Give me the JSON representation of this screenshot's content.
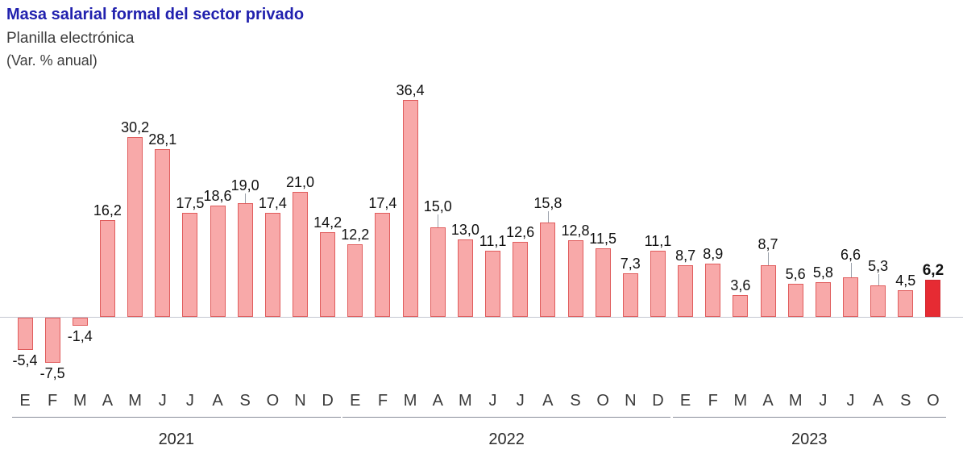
{
  "header": {
    "title": "Masa salarial formal del sector privado",
    "subtitle": "Planilla electrónica",
    "unit": "(Var. % anual)"
  },
  "chart_data": {
    "type": "bar",
    "title": "Masa salarial formal del sector privado",
    "subtitle": "Planilla electrónica",
    "ylabel": "Var. % anual",
    "ylim": [
      -10,
      40
    ],
    "grid": false,
    "legend": "none",
    "colors": {
      "bar_fill": "#f8a9a9",
      "bar_border": "#e05c5c",
      "highlight_fill": "#e62b33",
      "highlight_border": "#d42830",
      "title_blue": "#2121AE"
    },
    "years": [
      {
        "label": "2021",
        "months": [
          "E",
          "F",
          "M",
          "A",
          "M",
          "J",
          "J",
          "A",
          "S",
          "O",
          "N",
          "D"
        ]
      },
      {
        "label": "2022",
        "months": [
          "E",
          "F",
          "M",
          "A",
          "M",
          "J",
          "J",
          "A",
          "S",
          "O",
          "N",
          "D"
        ]
      },
      {
        "label": "2023",
        "months": [
          "E",
          "F",
          "M",
          "A",
          "M",
          "J",
          "J",
          "A",
          "S",
          "O"
        ]
      }
    ],
    "points": [
      {
        "month": "E",
        "year": 2021,
        "value": -5.4,
        "label": "-5,4"
      },
      {
        "month": "F",
        "year": 2021,
        "value": -7.5,
        "label": "-7,5"
      },
      {
        "month": "M",
        "year": 2021,
        "value": -1.4,
        "label": "-1,4"
      },
      {
        "month": "A",
        "year": 2021,
        "value": 16.2,
        "label": "16,2"
      },
      {
        "month": "M",
        "year": 2021,
        "value": 30.2,
        "label": "30,2"
      },
      {
        "month": "J",
        "year": 2021,
        "value": 28.1,
        "label": "28,1"
      },
      {
        "month": "J",
        "year": 2021,
        "value": 17.5,
        "label": "17,5"
      },
      {
        "month": "A",
        "year": 2021,
        "value": 18.6,
        "label": "18,6"
      },
      {
        "month": "S",
        "year": 2021,
        "value": 19.0,
        "label": "19,0",
        "dy": 10
      },
      {
        "month": "O",
        "year": 2021,
        "value": 17.4,
        "label": "17,4"
      },
      {
        "month": "N",
        "year": 2021,
        "value": 21.0,
        "label": "21,0"
      },
      {
        "month": "D",
        "year": 2021,
        "value": 14.2,
        "label": "14,2"
      },
      {
        "month": "E",
        "year": 2022,
        "value": 12.2,
        "label": "12,2"
      },
      {
        "month": "F",
        "year": 2022,
        "value": 17.4,
        "label": "17,4"
      },
      {
        "month": "M",
        "year": 2022,
        "value": 36.4,
        "label": "36,4"
      },
      {
        "month": "A",
        "year": 2022,
        "value": 15.0,
        "label": "15,0",
        "dy": 14
      },
      {
        "month": "M",
        "year": 2022,
        "value": 13.0,
        "label": "13,0"
      },
      {
        "month": "J",
        "year": 2022,
        "value": 11.1,
        "label": "11,1"
      },
      {
        "month": "J",
        "year": 2022,
        "value": 12.6,
        "label": "12,6"
      },
      {
        "month": "A",
        "year": 2022,
        "value": 15.8,
        "label": "15,8",
        "dy": 12
      },
      {
        "month": "S",
        "year": 2022,
        "value": 12.8,
        "label": "12,8"
      },
      {
        "month": "O",
        "year": 2022,
        "value": 11.5,
        "label": "11,5"
      },
      {
        "month": "N",
        "year": 2022,
        "value": 7.3,
        "label": "7,3"
      },
      {
        "month": "D",
        "year": 2022,
        "value": 11.1,
        "label": "11,1"
      },
      {
        "month": "E",
        "year": 2023,
        "value": 8.7,
        "label": "8,7"
      },
      {
        "month": "F",
        "year": 2023,
        "value": 8.9,
        "label": "8,9"
      },
      {
        "month": "M",
        "year": 2023,
        "value": 3.6,
        "label": "3,6"
      },
      {
        "month": "A",
        "year": 2023,
        "value": 8.7,
        "label": "8,7",
        "dy": 14
      },
      {
        "month": "M",
        "year": 2023,
        "value": 5.6,
        "label": "5,6"
      },
      {
        "month": "J",
        "year": 2023,
        "value": 5.8,
        "label": "5,8"
      },
      {
        "month": "J",
        "year": 2023,
        "value": 6.6,
        "label": "6,6",
        "dy": 16
      },
      {
        "month": "A",
        "year": 2023,
        "value": 5.3,
        "label": "5,3",
        "dy": 12
      },
      {
        "month": "S",
        "year": 2023,
        "value": 4.5,
        "label": "4,5"
      },
      {
        "month": "O",
        "year": 2023,
        "value": 6.2,
        "label": "6,2",
        "highlight": true,
        "bold": true
      }
    ]
  }
}
